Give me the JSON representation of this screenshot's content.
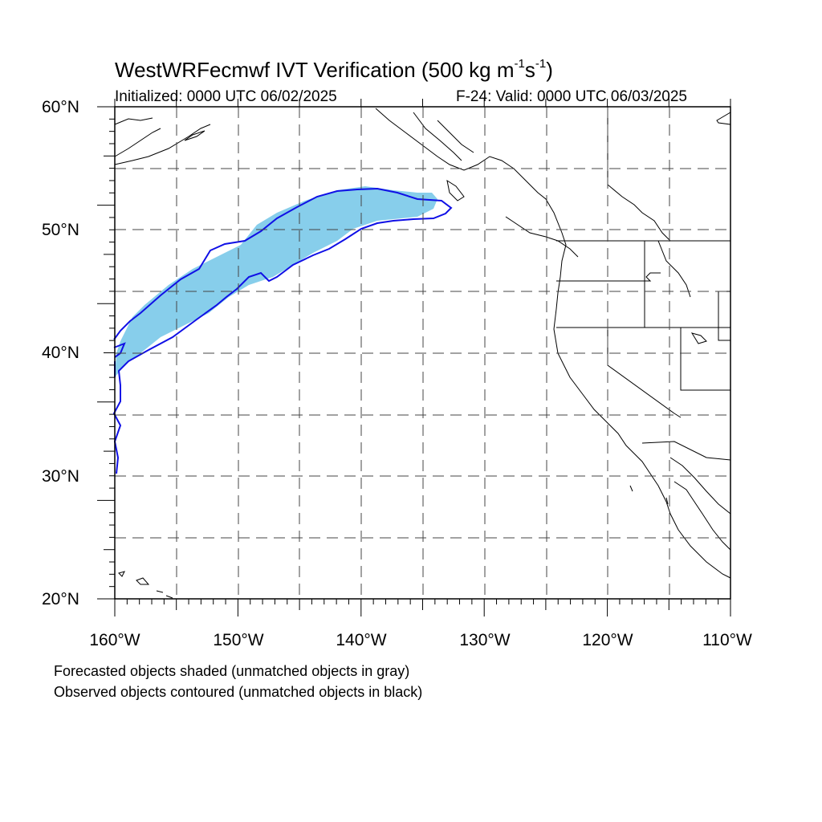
{
  "title": {
    "main": "WestWRFecmwf IVT Verification (500 kg m",
    "exp1": "-1",
    "mid": "s",
    "exp2": "-1",
    "end": ")"
  },
  "initialized": "Initialized: 0000 UTC 06/02/2025",
  "valid": "F-24: Valid: 0000 UTC 06/03/2025",
  "lat_labels": [
    "60°N",
    "50°N",
    "40°N",
    "30°N",
    "20°N"
  ],
  "lon_labels": [
    "160°W",
    "150°W",
    "140°W",
    "130°W",
    "120°W",
    "110°W"
  ],
  "legend": [
    "Forecasted objects shaded (unmatched objects in gray)",
    "Observed objects contoured (unmatched objects in black)"
  ],
  "colors": {
    "forecast_fill": "#87CEEB",
    "observed_contour": "#1010E6",
    "coastline": "#000000",
    "grid": "#555555"
  }
}
